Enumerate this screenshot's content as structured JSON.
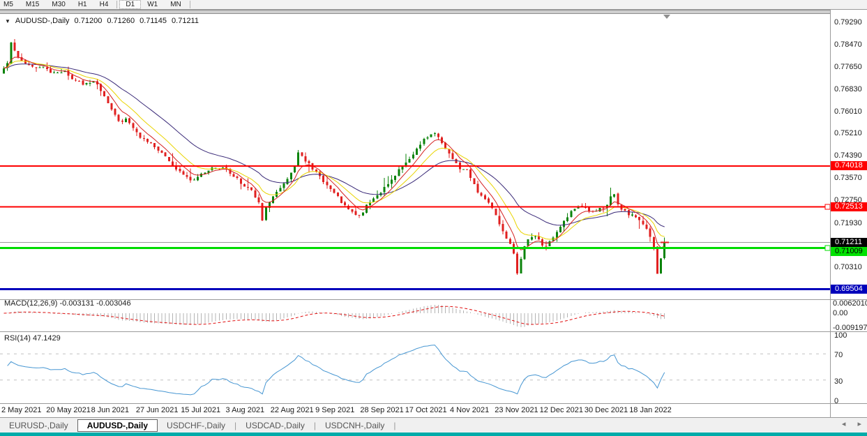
{
  "icons": {
    "title_caret": "▼",
    "tabs_left": "◂",
    "tabs_right": "▸"
  },
  "toolbar": {
    "timeframes": [
      {
        "label": "M5",
        "active": false,
        "sep_after": false
      },
      {
        "label": "M15",
        "active": false,
        "sep_after": false
      },
      {
        "label": "M30",
        "active": false,
        "sep_after": false
      },
      {
        "label": "H1",
        "active": false,
        "sep_after": false
      },
      {
        "label": "H4",
        "active": false,
        "sep_after": true
      },
      {
        "label": "D1",
        "active": true,
        "sep_after": false
      },
      {
        "label": "W1",
        "active": false,
        "sep_after": false
      },
      {
        "label": "MN",
        "active": false,
        "sep_after": true
      }
    ]
  },
  "chart": {
    "title": "AUDUSD-,Daily",
    "ohlc": {
      "open": "0.71200",
      "high": "0.71260",
      "low": "0.71145",
      "close": "0.71211"
    },
    "price_axis_ticks": [
      "0.79290",
      "0.78470",
      "0.77650",
      "0.76830",
      "0.76010",
      "0.75210",
      "0.74390",
      "0.73570",
      "0.72750",
      "0.71930",
      "0.70310"
    ],
    "price_lines": [
      {
        "value": "0.74018",
        "color": "#fe0000",
        "label_bg": "#fe0000",
        "label_fg": "#ffffff",
        "width": 2,
        "handle": false
      },
      {
        "value": "0.72513",
        "color": "#fe0000",
        "label_bg": "#fe0000",
        "label_fg": "#ffffff",
        "width": 2,
        "handle": true
      },
      {
        "value": "0.71009",
        "color": "#00dc00",
        "label_bg": "#00e100",
        "label_fg": "#000000",
        "width": 3,
        "handle": true
      },
      {
        "value": "0.69504",
        "color": "#0000bb",
        "label_bg": "#0000bb",
        "label_fg": "#ffffff",
        "width": 3,
        "handle": false
      }
    ],
    "current_price": {
      "value": "0.71211",
      "label_bg": "#000000",
      "label_fg": "#ffffff"
    }
  },
  "macd_panel": {
    "label": "MACD(12,26,9) -0.003131 -0.003046",
    "axis_ticks": [
      "0.0062010",
      "0.00",
      "-0.0091975"
    ]
  },
  "rsi_panel": {
    "label": "RSI(14) 47.1429",
    "axis_ticks": [
      "100",
      "70",
      "30",
      "0"
    ]
  },
  "date_axis": {
    "labels": [
      "2 May 2021",
      "20 May 2021",
      "8 Jun 2021",
      "27 Jun 2021",
      "15 Jul 2021",
      "3 Aug 2021",
      "22 Aug 2021",
      "9 Sep 2021",
      "28 Sep 2021",
      "17 Oct 2021",
      "4 Nov 2021",
      "23 Nov 2021",
      "12 Dec 2021",
      "30 Dec 2021",
      "18 Jan 2022"
    ]
  },
  "bottom_tabs": {
    "separator": "|",
    "tabs": [
      {
        "label": "EURUSD-,Daily",
        "active": false,
        "sep_after": false
      },
      {
        "label": "AUDUSD-,Daily",
        "active": true,
        "sep_after": false
      },
      {
        "label": "USDCHF-,Daily",
        "active": false,
        "sep_after": true
      },
      {
        "label": "USDCAD-,Daily",
        "active": false,
        "sep_after": true
      },
      {
        "label": "USDCNH-,Daily",
        "active": false,
        "sep_after": true
      }
    ]
  },
  "colors": {
    "bull": "#0a830a",
    "bear": "#e02020",
    "ma_fast": "#d42020",
    "ma_mid": "#e9d400",
    "ma_slow": "#3a2a78",
    "macd_hist": "#b3b3b3",
    "macd_signal": "#e01010",
    "rsi_line": "#4696d2",
    "grid_dash": "#c0c0c0",
    "separator": "#9a9a9a",
    "current_line": "#9a9a9a",
    "accent_teal": "#00aba9"
  },
  "chart_data": {
    "type": "candlestick",
    "symbol": "AUDUSD-",
    "timeframe": "Daily",
    "last_ohlc": {
      "open": 0.712,
      "high": 0.7126,
      "low": 0.71145,
      "close": 0.71211
    },
    "y_axis_range": [
      0.691,
      0.795
    ],
    "x_axis_labels": [
      "2 May 2021",
      "20 May 2021",
      "8 Jun 2021",
      "27 Jun 2021",
      "15 Jul 2021",
      "3 Aug 2021",
      "22 Aug 2021",
      "9 Sep 2021",
      "28 Sep 2021",
      "17 Oct 2021",
      "4 Nov 2021",
      "23 Nov 2021",
      "12 Dec 2021",
      "30 Dec 2021",
      "18 Jan 2022"
    ],
    "candle_count": 185,
    "horizontal_levels": [
      0.74018,
      0.72513,
      0.71211,
      0.71009,
      0.69504
    ],
    "moving_average_periods": {
      "fast": 6,
      "mid": 12,
      "slow": 26
    },
    "macd": {
      "fast": 12,
      "slow": 26,
      "signal": 9,
      "current": -0.003131,
      "current_signal": -0.003046,
      "axis_max": 0.006201,
      "axis_min": -0.0091975
    },
    "rsi": {
      "period": 14,
      "current": 47.1429,
      "levels": [
        70,
        30
      ],
      "axis_ticks": [
        100,
        70,
        30,
        0
      ]
    },
    "price_path_anchors": [
      [
        4,
        0.7735
      ],
      [
        10,
        0.776
      ],
      [
        16,
        0.778
      ],
      [
        21,
        0.7868
      ],
      [
        24,
        0.784
      ],
      [
        28,
        0.7806
      ],
      [
        34,
        0.7788
      ],
      [
        42,
        0.7776
      ],
      [
        50,
        0.7768
      ],
      [
        58,
        0.776
      ],
      [
        66,
        0.777
      ],
      [
        74,
        0.7752
      ],
      [
        82,
        0.774
      ],
      [
        90,
        0.7744
      ],
      [
        98,
        0.7752
      ],
      [
        106,
        0.7728
      ],
      [
        114,
        0.7714
      ],
      [
        122,
        0.7706
      ],
      [
        130,
        0.7702
      ],
      [
        138,
        0.7716
      ],
      [
        146,
        0.769
      ],
      [
        152,
        0.767
      ],
      [
        158,
        0.7638
      ],
      [
        164,
        0.7612
      ],
      [
        170,
        0.759
      ],
      [
        176,
        0.7562
      ],
      [
        182,
        0.757
      ],
      [
        188,
        0.7576
      ],
      [
        194,
        0.7542
      ],
      [
        200,
        0.7526
      ],
      [
        206,
        0.7508
      ],
      [
        212,
        0.7498
      ],
      [
        218,
        0.749
      ],
      [
        224,
        0.7478
      ],
      [
        230,
        0.7462
      ],
      [
        236,
        0.745
      ],
      [
        242,
        0.744
      ],
      [
        248,
        0.7418
      ],
      [
        254,
        0.7398
      ],
      [
        260,
        0.7388
      ],
      [
        266,
        0.7374
      ],
      [
        272,
        0.7362
      ],
      [
        278,
        0.7352
      ],
      [
        284,
        0.7356
      ],
      [
        290,
        0.7368
      ],
      [
        296,
        0.7376
      ],
      [
        302,
        0.7388
      ],
      [
        308,
        0.7394
      ],
      [
        314,
        0.7398
      ],
      [
        320,
        0.7396
      ],
      [
        326,
        0.739
      ],
      [
        332,
        0.7384
      ],
      [
        338,
        0.7368
      ],
      [
        344,
        0.7356
      ],
      [
        350,
        0.7338
      ],
      [
        356,
        0.733
      ],
      [
        362,
        0.7326
      ],
      [
        368,
        0.7298
      ],
      [
        374,
        0.7278
      ],
      [
        379,
        0.7262
      ],
      [
        382,
        0.716
      ],
      [
        386,
        0.7246
      ],
      [
        392,
        0.7278
      ],
      [
        398,
        0.7298
      ],
      [
        404,
        0.7314
      ],
      [
        410,
        0.7334
      ],
      [
        416,
        0.7348
      ],
      [
        422,
        0.7378
      ],
      [
        427,
        0.7404
      ],
      [
        432,
        0.7452
      ],
      [
        436,
        0.7444
      ],
      [
        442,
        0.7422
      ],
      [
        448,
        0.7406
      ],
      [
        454,
        0.739
      ],
      [
        460,
        0.7372
      ],
      [
        466,
        0.735
      ],
      [
        472,
        0.7338
      ],
      [
        478,
        0.7322
      ],
      [
        484,
        0.7304
      ],
      [
        490,
        0.7286
      ],
      [
        496,
        0.7262
      ],
      [
        502,
        0.7246
      ],
      [
        508,
        0.7232
      ],
      [
        514,
        0.7222
      ],
      [
        519,
        0.7218
      ],
      [
        525,
        0.7236
      ],
      [
        531,
        0.7258
      ],
      [
        537,
        0.7276
      ],
      [
        543,
        0.7292
      ],
      [
        549,
        0.7304
      ],
      [
        555,
        0.7318
      ],
      [
        561,
        0.7338
      ],
      [
        567,
        0.7356
      ],
      [
        573,
        0.7374
      ],
      [
        579,
        0.7396
      ],
      [
        585,
        0.7408
      ],
      [
        591,
        0.742
      ],
      [
        597,
        0.744
      ],
      [
        603,
        0.7468
      ],
      [
        609,
        0.749
      ],
      [
        615,
        0.7506
      ],
      [
        621,
        0.7514
      ],
      [
        627,
        0.7524
      ],
      [
        632,
        0.751
      ],
      [
        638,
        0.7488
      ],
      [
        644,
        0.7462
      ],
      [
        650,
        0.7442
      ],
      [
        656,
        0.7418
      ],
      [
        662,
        0.7398
      ],
      [
        668,
        0.739
      ],
      [
        674,
        0.7392
      ],
      [
        680,
        0.7356
      ],
      [
        686,
        0.7322
      ],
      [
        692,
        0.7298
      ],
      [
        698,
        0.7284
      ],
      [
        704,
        0.7266
      ],
      [
        710,
        0.725
      ],
      [
        716,
        0.7214
      ],
      [
        722,
        0.7178
      ],
      [
        728,
        0.7152
      ],
      [
        734,
        0.7124
      ],
      [
        740,
        0.7102
      ],
      [
        746,
        0.7004
      ],
      [
        751,
        0.706
      ],
      [
        756,
        0.7104
      ],
      [
        762,
        0.7132
      ],
      [
        768,
        0.7148
      ],
      [
        774,
        0.7138
      ],
      [
        780,
        0.7118
      ],
      [
        786,
        0.7106
      ],
      [
        792,
        0.7122
      ],
      [
        798,
        0.714
      ],
      [
        804,
        0.7158
      ],
      [
        810,
        0.7184
      ],
      [
        816,
        0.7208
      ],
      [
        822,
        0.723
      ],
      [
        828,
        0.7242
      ],
      [
        834,
        0.725
      ],
      [
        840,
        0.7256
      ],
      [
        846,
        0.724
      ],
      [
        852,
        0.7228
      ],
      [
        858,
        0.7238
      ],
      [
        864,
        0.7246
      ],
      [
        870,
        0.7252
      ],
      [
        876,
        0.7266
      ],
      [
        881,
        0.729
      ],
      [
        885,
        0.7296
      ],
      [
        889,
        0.726
      ],
      [
        895,
        0.7248
      ],
      [
        901,
        0.7234
      ],
      [
        907,
        0.7224
      ],
      [
        913,
        0.7218
      ],
      [
        919,
        0.7208
      ],
      [
        925,
        0.7196
      ],
      [
        931,
        0.7172
      ],
      [
        937,
        0.714
      ],
      [
        941,
        0.7128
      ],
      [
        944,
        0.705
      ],
      [
        948,
        0.6988
      ],
      [
        951,
        0.7015
      ],
      [
        953,
        0.7098
      ],
      [
        956,
        0.7121
      ]
    ]
  }
}
